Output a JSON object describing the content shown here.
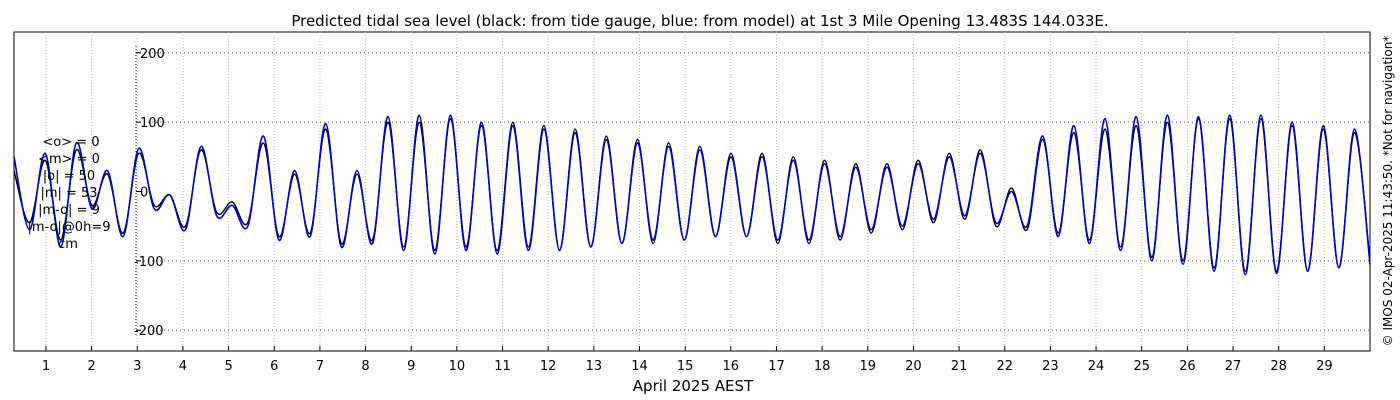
{
  "chart_data": {
    "type": "line",
    "title": "Predicted tidal sea level (black: from tide gauge, blue: from model) at 1st 3 Mile Opening 13.483S 144.033E.",
    "xlabel": "April 2025 AEST",
    "ylabel": "",
    "xlim": [
      0.3,
      30.0
    ],
    "ylim": [
      -230,
      230
    ],
    "yticks": [
      -200,
      -100,
      0,
      100,
      200
    ],
    "xticks": [
      1,
      2,
      3,
      4,
      5,
      6,
      7,
      8,
      9,
      10,
      11,
      12,
      13,
      14,
      15,
      16,
      17,
      18,
      19,
      20,
      21,
      22,
      23,
      24,
      25,
      26,
      27,
      28,
      29
    ],
    "x_start": 0.3,
    "x_end": 30.0,
    "grid": true,
    "series": [
      {
        "color": "#000000",
        "step": 0.25,
        "values": [
          30,
          -45,
          45,
          -70,
          60,
          -20,
          25,
          -60,
          55,
          -20,
          -5,
          -50,
          60,
          -30,
          -15,
          -45,
          70,
          -65,
          25,
          -60,
          90,
          -75,
          25,
          -70,
          100,
          -80,
          100,
          -85,
          105,
          -80,
          95,
          -85,
          100,
          -80,
          95,
          -85,
          90,
          -80,
          80,
          -75,
          75,
          -75,
          70,
          -70,
          65,
          -65,
          55,
          -65,
          55,
          -75,
          50,
          -75,
          45,
          -70,
          40,
          -60,
          40,
          -55,
          45,
          -45,
          55,
          -40,
          60,
          -50,
          5,
          -55,
          75,
          -60,
          85,
          -70,
          90,
          -80,
          95,
          -95,
          100,
          -100,
          105,
          -110,
          105,
          -115,
          105,
          -115,
          95,
          -115,
          90,
          -110,
          85,
          -100
        ]
      },
      {
        "color": "#0000cc",
        "step": 0.25,
        "values": [
          50,
          -55,
          55,
          -80,
          70,
          -25,
          30,
          -65,
          62,
          -25,
          -5,
          -55,
          65,
          -35,
          -20,
          -50,
          80,
          -70,
          30,
          -65,
          98,
          -80,
          30,
          -75,
          108,
          -85,
          110,
          -90,
          110,
          -85,
          100,
          -90,
          95,
          -85,
          90,
          -85,
          85,
          -80,
          75,
          -75,
          70,
          -70,
          65,
          -70,
          60,
          -65,
          50,
          -65,
          50,
          -70,
          45,
          -70,
          40,
          -65,
          35,
          -55,
          35,
          -50,
          40,
          -40,
          50,
          -35,
          55,
          -45,
          0,
          -50,
          80,
          -65,
          95,
          -75,
          105,
          -85,
          108,
          -100,
          110,
          -105,
          108,
          -115,
          110,
          -120,
          110,
          -118,
          100,
          -115,
          95,
          -110,
          90,
          -105
        ]
      }
    ]
  },
  "stats": {
    "mean_obs": "<o> = 0",
    "mean_model": "<m> = 0",
    "abs_obs": "|o| = 50",
    "abs_model": "|m| = 53",
    "abs_diff": "|m-o| = 9",
    "abs_diff_0h": "|m-o|@0h=9",
    "unit": "cm"
  },
  "credit": "© IMOS 02-Apr-2025 11:43:50. *Not for navigation*"
}
